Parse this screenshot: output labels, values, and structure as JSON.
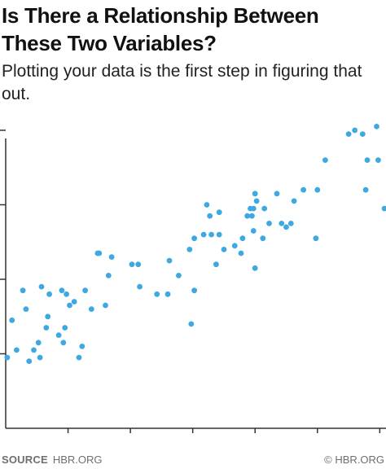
{
  "header": {
    "title": "Is There a Relationship Between These Two Variables?",
    "subtitle": "Plotting your data is the first step in figuring that out."
  },
  "footer": {
    "source_label": "SOURCE",
    "source_value": "HBR.ORG",
    "credit": "© HBR.ORG"
  },
  "colors": {
    "point": "#3ea9e0",
    "axis": "#333333"
  },
  "chart_data": {
    "type": "scatter",
    "title": "Is There a Relationship Between These Two Variables?",
    "subtitle": "Plotting your data is the first step in figuring that out.",
    "xlabel": "",
    "ylabel": "",
    "xlim": [
      0,
      12.2
    ],
    "ylim": [
      0,
      4
    ],
    "x_ticks": [
      2,
      4,
      6,
      8,
      10,
      12
    ],
    "y_ticks": [
      1,
      2,
      3,
      4
    ],
    "x_tick_labels_shown": false,
    "y_tick_labels_shown": false,
    "grid": false,
    "legend": "none",
    "points": [
      [
        0.05,
        0.95
      ],
      [
        0.2,
        1.45
      ],
      [
        0.35,
        1.05
      ],
      [
        0.55,
        1.85
      ],
      [
        0.65,
        1.6
      ],
      [
        0.75,
        0.9
      ],
      [
        0.9,
        1.05
      ],
      [
        1.05,
        1.15
      ],
      [
        1.1,
        0.95
      ],
      [
        1.15,
        1.9
      ],
      [
        1.3,
        1.35
      ],
      [
        1.35,
        1.5
      ],
      [
        1.4,
        1.8
      ],
      [
        1.7,
        1.25
      ],
      [
        1.8,
        1.85
      ],
      [
        1.85,
        1.15
      ],
      [
        1.9,
        1.35
      ],
      [
        1.95,
        1.8
      ],
      [
        2.05,
        1.65
      ],
      [
        2.2,
        1.7
      ],
      [
        2.35,
        0.95
      ],
      [
        2.45,
        1.1
      ],
      [
        2.55,
        1.85
      ],
      [
        2.75,
        1.6
      ],
      [
        2.95,
        2.35
      ],
      [
        3.0,
        2.35
      ],
      [
        3.2,
        1.65
      ],
      [
        3.3,
        2.05
      ],
      [
        3.4,
        2.3
      ],
      [
        4.05,
        2.2
      ],
      [
        4.25,
        2.2
      ],
      [
        4.3,
        1.9
      ],
      [
        4.85,
        1.8
      ],
      [
        5.2,
        1.8
      ],
      [
        5.25,
        2.25
      ],
      [
        5.55,
        2.05
      ],
      [
        5.9,
        2.4
      ],
      [
        5.95,
        1.4
      ],
      [
        6.05,
        2.55
      ],
      [
        6.05,
        1.85
      ],
      [
        6.35,
        2.6
      ],
      [
        6.45,
        3.0
      ],
      [
        6.55,
        2.85
      ],
      [
        6.6,
        2.6
      ],
      [
        6.75,
        2.2
      ],
      [
        6.85,
        2.9
      ],
      [
        6.85,
        2.6
      ],
      [
        7.0,
        2.4
      ],
      [
        7.35,
        2.45
      ],
      [
        7.55,
        2.35
      ],
      [
        7.6,
        2.55
      ],
      [
        7.75,
        2.85
      ],
      [
        7.85,
        2.95
      ],
      [
        7.9,
        2.85
      ],
      [
        7.95,
        2.65
      ],
      [
        7.95,
        2.95
      ],
      [
        8.0,
        2.15
      ],
      [
        8.0,
        3.15
      ],
      [
        8.05,
        3.05
      ],
      [
        8.25,
        2.55
      ],
      [
        8.3,
        2.95
      ],
      [
        8.45,
        2.75
      ],
      [
        8.7,
        3.15
      ],
      [
        8.85,
        2.75
      ],
      [
        9.0,
        2.7
      ],
      [
        9.15,
        2.75
      ],
      [
        9.25,
        3.05
      ],
      [
        9.55,
        3.2
      ],
      [
        9.95,
        2.55
      ],
      [
        10.0,
        3.2
      ],
      [
        10.25,
        3.6
      ],
      [
        11.0,
        3.95
      ],
      [
        11.2,
        4.0
      ],
      [
        11.45,
        3.95
      ],
      [
        11.55,
        3.2
      ],
      [
        11.6,
        3.6
      ],
      [
        11.9,
        4.05
      ],
      [
        11.95,
        3.6
      ],
      [
        12.15,
        2.95
      ]
    ]
  }
}
